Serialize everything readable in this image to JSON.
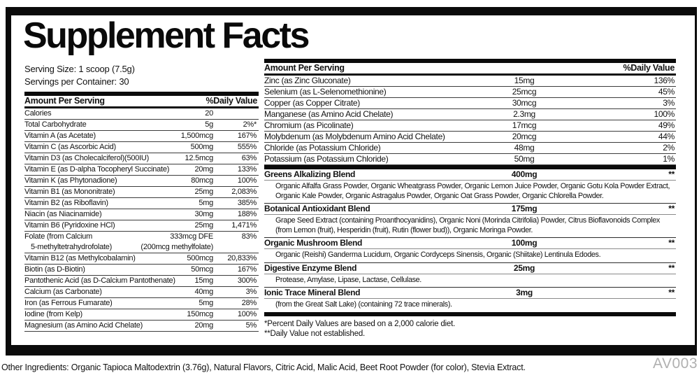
{
  "title": "Supplement Facts",
  "serving": {
    "size": "Serving Size: 1 scoop (7.5g)",
    "per_container": "Servings per Container: 30"
  },
  "left_table": {
    "header": {
      "amount": "Amount Per Serving",
      "dv": "%Daily Value"
    },
    "rows": [
      {
        "name": "Calories",
        "amount": "20",
        "dv": ""
      },
      {
        "name": "Total Carbohydrate",
        "amount": "5g",
        "dv": "2%*"
      },
      {
        "name": "Vitamin A (as Acetate)",
        "amount": "1,500mcg",
        "dv": "167%"
      },
      {
        "name": "Vitamin C (as Ascorbic Acid)",
        "amount": "500mg",
        "dv": "555%"
      },
      {
        "name": "Vitamin D3 (as Cholecalciferol)(500IU)",
        "amount": "12.5mcg",
        "dv": "63%"
      },
      {
        "name": "Vitamin E (as D-alpha Tocopheryl Succinate)",
        "amount": "20mg",
        "dv": "133%"
      },
      {
        "name": "Vitamin K (as Phytonadione)",
        "amount": "80mcg",
        "dv": "100%"
      },
      {
        "name": "Vitamin B1 (as Mononitrate)",
        "amount": "25mg",
        "dv": "2,083%"
      },
      {
        "name": "Vitamin B2 (as Riboflavin)",
        "amount": "5mg",
        "dv": "385%"
      },
      {
        "name": "Niacin (as Niacinamide)",
        "amount": "30mg",
        "dv": "188%"
      },
      {
        "name": "Vitamin B6 (Pyridoxine HCl)",
        "amount": "25mg",
        "dv": "1,471%"
      },
      {
        "name": "Folate (from Calcium",
        "name2": "5-methyltetrahydrofolate)",
        "amount": "333mcg DFE",
        "amount2": "(200mcg methylfolate)",
        "dv": "83%"
      },
      {
        "name": "Vitamin B12 (as Methylcobalamin)",
        "amount": "500mcg",
        "dv": "20,833%"
      },
      {
        "name": "Biotin (as D-Biotin)",
        "amount": "50mcg",
        "dv": "167%"
      },
      {
        "name": "Pantothenic Acid (as D-Calcium Pantothenate)",
        "amount": "15mg",
        "dv": "300%"
      },
      {
        "name": "Calcium (as Carbonate)",
        "amount": "40mg",
        "dv": "3%"
      },
      {
        "name": "Iron (as Ferrous Fumarate)",
        "amount": "5mg",
        "dv": "28%"
      },
      {
        "name": "Iodine (from Kelp)",
        "amount": "150mcg",
        "dv": "100%"
      },
      {
        "name": "Magnesium (as Amino Acid Chelate)",
        "amount": "20mg",
        "dv": "5%"
      }
    ]
  },
  "right_table": {
    "header": {
      "amount": "Amount Per Serving",
      "dv": "%Daily Value"
    },
    "rows": [
      {
        "name": "Zinc (as Zinc Gluconate)",
        "amount": "15mg",
        "dv": "136%"
      },
      {
        "name": "Selenium (as L-Selenomethionine)",
        "amount": "25mcg",
        "dv": "45%"
      },
      {
        "name": "Copper (as Copper Citrate)",
        "amount": "30mcg",
        "dv": "3%"
      },
      {
        "name": "Manganese (as Amino Acid Chelate)",
        "amount": "2.3mg",
        "dv": "100%"
      },
      {
        "name": "Chromium (as Picolinate)",
        "amount": "17mcg",
        "dv": "49%"
      },
      {
        "name": "Molybdenum (as Molybdenum Amino Acid Chelate)",
        "amount": "20mcg",
        "dv": "44%"
      },
      {
        "name": "Chloride (as Potassium Chloride)",
        "amount": "48mg",
        "dv": "2%"
      },
      {
        "name": "Potassium (as Potassium Chloride)",
        "amount": "50mg",
        "dv": "1%"
      }
    ]
  },
  "blends": [
    {
      "name": "Greens Alkalizing Blend",
      "amount": "400mg",
      "dv": "**",
      "ingredients": "Organic Alfalfa Grass Powder, Organic Wheatgrass Powder, Organic Lemon Juice Powder, Organic Gotu Kola Powder Extract, Organic Kale Powder, Organic Astragalus Powder, Organic Oat Grass Powder, Organic Chlorella Powder."
    },
    {
      "name": "Botanical Antioxidant Blend",
      "amount": "175mg",
      "dv": "**",
      "ingredients": "Grape Seed Extract (containing Proanthocyanidins), Organic Noni (Morinda Citrifolia) Powder, Citrus Bioflavonoids Complex (from Lemon (fruit), Hesperidin (fruit), Rutin (flower bud)), Organic Moringa Powder."
    },
    {
      "name": "Organic Mushroom Blend",
      "amount": "100mg",
      "dv": "**",
      "ingredients": "Organic (Reishi) Ganderma Lucidum, Organic Cordyceps Sinensis, Organic (Shiitake) Lentinula Edodes."
    },
    {
      "name": "Digestive Enzyme Blend",
      "amount": "25mg",
      "dv": "**",
      "ingredients": "Protease, Amylase, Lipase, Lactase, Cellulase."
    },
    {
      "name": "Ionic Trace Mineral Blend",
      "amount": "3mg",
      "dv": "**",
      "ingredients": "(from the Great Salt Lake) (containing 72 trace minerals)."
    }
  ],
  "footnotes": [
    "*Percent Daily Values are based on a 2,000 calorie diet.",
    "**Daily Value not established."
  ],
  "other_ingredients": "Other Ingredients: Organic Tapioca Maltodextrin (3.76g), Natural Flavors, Citric Acid, Malic Acid, Beet Root Powder (for color), Stevia Extract.",
  "code": "AV003"
}
